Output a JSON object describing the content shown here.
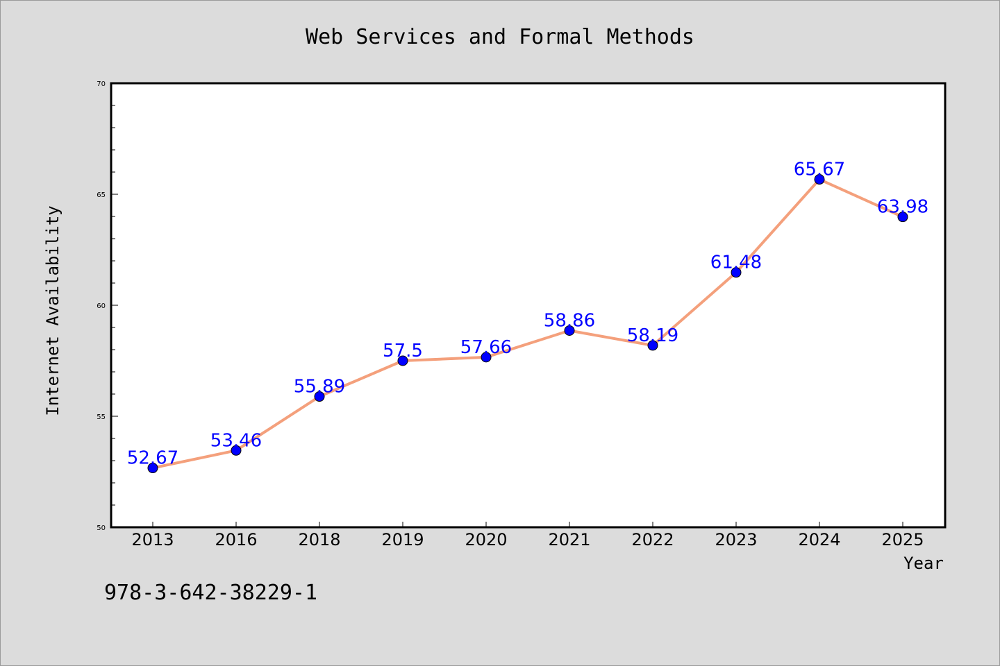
{
  "chart_data": {
    "type": "line",
    "title": "Web Services and Formal Methods",
    "xlabel": "Year",
    "ylabel": "Internet Availability",
    "categories": [
      "2013",
      "2016",
      "2018",
      "2019",
      "2020",
      "2021",
      "2022",
      "2023",
      "2024",
      "2025"
    ],
    "values": [
      52.67,
      53.46,
      55.89,
      57.5,
      57.66,
      58.86,
      58.19,
      61.48,
      65.67,
      63.98
    ],
    "data_labels": [
      "52.67",
      "53.46",
      "55.89",
      "57.5",
      "57.66",
      "58.86",
      "58.19",
      "61.48",
      "65.67",
      "63.98"
    ],
    "ylim": [
      50,
      70
    ],
    "yticks": [
      50,
      55,
      60,
      65,
      70
    ],
    "grid": false,
    "legend": "none",
    "line_color": "#f4a07c",
    "marker_color": "#0000ff",
    "label_color": "#0000ff"
  },
  "annotation": "978-3-642-38229-1"
}
